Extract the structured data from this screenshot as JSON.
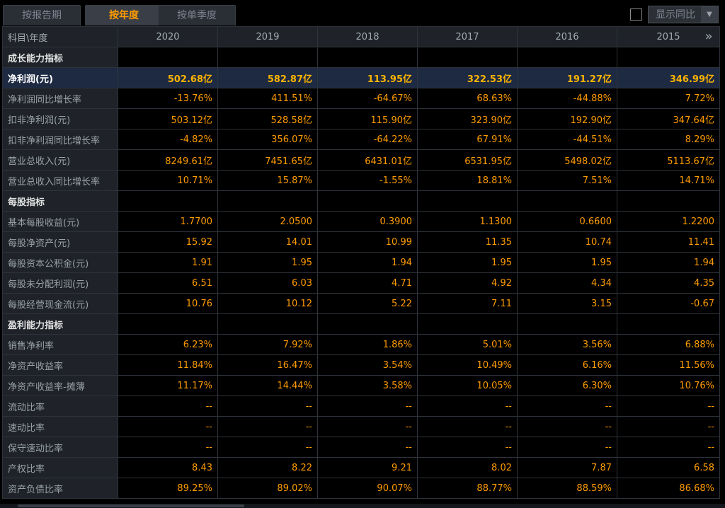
{
  "tabs": [
    "按报告期",
    "按年度",
    "按单季度"
  ],
  "active_tab": 1,
  "toggle": {
    "label": "显示同比",
    "checked": false
  },
  "table": {
    "header_label": "科目\\年度",
    "years": [
      "2020",
      "2019",
      "2018",
      "2017",
      "2016",
      "2015"
    ],
    "rows": [
      {
        "label": "成长能力指标",
        "section": true,
        "values": []
      },
      {
        "label": "净利润(元)",
        "highlight": true,
        "values": [
          "502.68亿",
          "582.87亿",
          "113.95亿",
          "322.53亿",
          "191.27亿",
          "346.99亿"
        ]
      },
      {
        "label": "净利润同比增长率",
        "values": [
          "-13.76%",
          "411.51%",
          "-64.67%",
          "68.63%",
          "-44.88%",
          "7.72%"
        ]
      },
      {
        "label": "扣非净利润(元)",
        "values": [
          "503.12亿",
          "528.58亿",
          "115.90亿",
          "323.90亿",
          "192.90亿",
          "347.64亿"
        ]
      },
      {
        "label": "扣非净利润同比增长率",
        "values": [
          "-4.82%",
          "356.07%",
          "-64.22%",
          "67.91%",
          "-44.51%",
          "8.29%"
        ]
      },
      {
        "label": "营业总收入(元)",
        "values": [
          "8249.61亿",
          "7451.65亿",
          "6431.01亿",
          "6531.95亿",
          "5498.02亿",
          "5113.67亿"
        ]
      },
      {
        "label": "营业总收入同比增长率",
        "values": [
          "10.71%",
          "15.87%",
          "-1.55%",
          "18.81%",
          "7.51%",
          "14.71%"
        ]
      },
      {
        "label": "每股指标",
        "section": true,
        "values": []
      },
      {
        "label": "基本每股收益(元)",
        "values": [
          "1.7700",
          "2.0500",
          "0.3900",
          "1.1300",
          "0.6600",
          "1.2200"
        ]
      },
      {
        "label": "每股净资产(元)",
        "values": [
          "15.92",
          "14.01",
          "10.99",
          "11.35",
          "10.74",
          "11.41"
        ]
      },
      {
        "label": "每股资本公积金(元)",
        "values": [
          "1.91",
          "1.95",
          "1.94",
          "1.95",
          "1.95",
          "1.94"
        ]
      },
      {
        "label": "每股未分配利润(元)",
        "values": [
          "6.51",
          "6.03",
          "4.71",
          "4.92",
          "4.34",
          "4.35"
        ]
      },
      {
        "label": "每股经营现金流(元)",
        "values": [
          "10.76",
          "10.12",
          "5.22",
          "7.11",
          "3.15",
          "-0.67"
        ]
      },
      {
        "label": "盈利能力指标",
        "section": true,
        "values": []
      },
      {
        "label": "销售净利率",
        "values": [
          "6.23%",
          "7.92%",
          "1.86%",
          "5.01%",
          "3.56%",
          "6.88%"
        ]
      },
      {
        "label": "净资产收益率",
        "values": [
          "11.84%",
          "16.47%",
          "3.54%",
          "10.49%",
          "6.16%",
          "11.56%"
        ]
      },
      {
        "label": "净资产收益率-摊薄",
        "values": [
          "11.17%",
          "14.44%",
          "3.58%",
          "10.05%",
          "6.30%",
          "10.76%"
        ]
      },
      {
        "label": "流动比率",
        "values": [
          "--",
          "--",
          "--",
          "--",
          "--",
          "--"
        ]
      },
      {
        "label": "速动比率",
        "values": [
          "--",
          "--",
          "--",
          "--",
          "--",
          "--"
        ]
      },
      {
        "label": "保守速动比率",
        "values": [
          "--",
          "--",
          "--",
          "--",
          "--",
          "--"
        ]
      },
      {
        "label": "产权比率",
        "values": [
          "8.43",
          "8.22",
          "9.21",
          "8.02",
          "7.87",
          "6.58"
        ]
      },
      {
        "label": "资产负债比率",
        "values": [
          "89.25%",
          "89.02%",
          "90.07%",
          "88.77%",
          "88.59%",
          "86.68%"
        ]
      }
    ]
  },
  "icons": {
    "next_page": "double-chevron-right-icon",
    "dropdown": "caret-down-icon"
  }
}
